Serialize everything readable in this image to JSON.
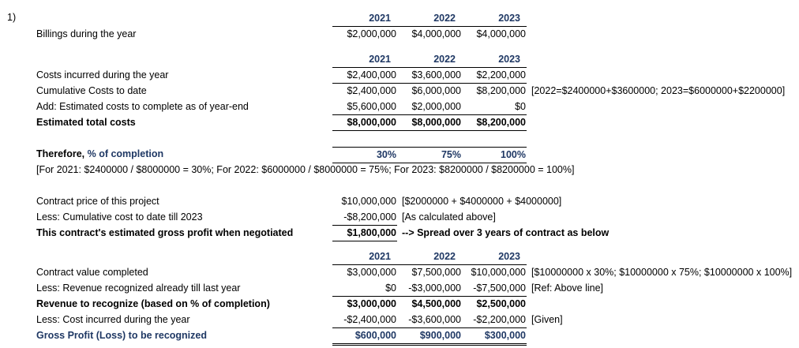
{
  "accent_color": "#1f3864",
  "item_marker": "1)",
  "billings": {
    "years": [
      "2021",
      "2022",
      "2023"
    ],
    "row": {
      "label": "Billings during the year",
      "v1": "$2,000,000",
      "v2": "$4,000,000",
      "v3": "$4,000,000"
    }
  },
  "costs": {
    "years": [
      "2021",
      "2022",
      "2023"
    ],
    "incurred": {
      "label": "Costs incurred during the year",
      "v1": "$2,400,000",
      "v2": "$3,600,000",
      "v3": "$2,200,000"
    },
    "cumulative": {
      "label": "Cumulative Costs to date",
      "v1": "$2,400,000",
      "v2": "$6,000,000",
      "v3": "$8,200,000",
      "note": "[2022=$2400000+$3600000; 2023=$6000000+$2200000]"
    },
    "add_estimated": {
      "label": "Add: Estimated costs to complete as of year-end",
      "v1": "$5,600,000",
      "v2": "$2,000,000",
      "v3": "$0"
    },
    "total": {
      "label": "Estimated total costs",
      "v1": "$8,000,000",
      "v2": "$8,000,000",
      "v3": "$8,200,000"
    }
  },
  "completion": {
    "label_prefix": "Therefore, ",
    "label_emphasis": "% of completion",
    "v1": "30%",
    "v2": "75%",
    "v3": "100%",
    "formula": "[For 2021: $2400000 / $8000000 = 30%; For 2022: $6000000 / $8000000 = 75%; For 2023: $8200000 / $8200000 = 100%]"
  },
  "contract": {
    "price": {
      "label": "Contract price of this project",
      "value": "$10,000,000",
      "note": "[$2000000 + $4000000 + $4000000]"
    },
    "less_cost": {
      "label": "Less: Cumulative cost to date till 2023",
      "value": "-$8,200,000",
      "note": "[As calculated above]"
    },
    "gross_profit": {
      "label": "This contract's estimated gross profit when negotiated",
      "value": "$1,800,000",
      "note": "--> Spread over 3 years of contract as below"
    }
  },
  "revenue": {
    "years": [
      "2021",
      "2022",
      "2023"
    ],
    "completed": {
      "label": "Contract value completed",
      "v1": "$3,000,000",
      "v2": "$7,500,000",
      "v3": "$10,000,000",
      "note": "[$10000000 x 30%; $10000000 x 75%; $10000000 x 100%]"
    },
    "recognized_prior": {
      "label": "Less: Revenue recognized already till last year",
      "v1": "$0",
      "v2": "-$3,000,000",
      "v3": "-$7,500,000",
      "note": "[Ref: Above line]"
    },
    "to_recognize": {
      "label": "Revenue to recognize (based on % of completion)",
      "v1": "$3,000,000",
      "v2": "$4,500,000",
      "v3": "$2,500,000"
    },
    "less_cost": {
      "label": "Less: Cost incurred during the year",
      "v1": "-$2,400,000",
      "v2": "-$3,600,000",
      "v3": "-$2,200,000",
      "note": "[Given]"
    },
    "gross_profit": {
      "label": "Gross Profit (Loss) to be recognized",
      "v1": "$600,000",
      "v2": "$900,000",
      "v3": "$300,000"
    }
  }
}
